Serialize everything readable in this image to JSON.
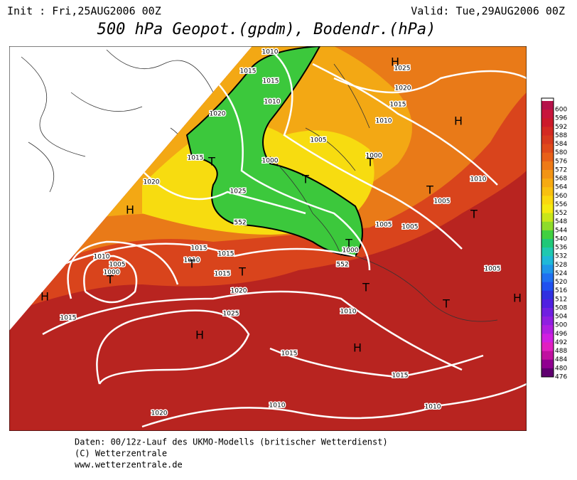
{
  "header": {
    "init": "Init : Fri,25AUG2006 00Z",
    "valid": "Valid: Tue,29AUG2006 00Z",
    "title": "500 hPa Geopot.(gpdm), Bodendr.(hPa)"
  },
  "legend": {
    "labels": [
      "600",
      "596",
      "592",
      "588",
      "584",
      "580",
      "576",
      "572",
      "568",
      "564",
      "560",
      "556",
      "552",
      "548",
      "544",
      "540",
      "536",
      "532",
      "528",
      "524",
      "520",
      "516",
      "512",
      "508",
      "504",
      "500",
      "496",
      "492",
      "488",
      "484",
      "480",
      "476"
    ]
  },
  "map": {
    "labels": [
      "1010",
      "1015",
      "1015",
      "1010",
      "1020",
      "1015",
      "T",
      "1020",
      "H",
      "1025",
      "H",
      "1020",
      "1015",
      "1010",
      "H",
      "1005",
      "1000",
      "1000",
      "T",
      "T",
      "1025",
      "T",
      "1010",
      "1005",
      "T",
      "1005",
      "1005",
      "1015",
      "1015",
      "1010",
      "T",
      "1015",
      "T",
      "1010",
      "1005",
      "1000",
      "T",
      "H",
      "1020",
      "T",
      "1005",
      "T",
      "H",
      "1025",
      "H",
      "1010",
      "1015",
      "H",
      "1015",
      "1015",
      "1020",
      "1010",
      "1010",
      "1000",
      "T",
      "552",
      "552"
    ]
  },
  "footer": {
    "lines": [
      "Daten: 00/12z-Lauf des UKMO-Modells (britischer Wetterdienst)",
      "(C) Wetterzentrale",
      "www.wetterzentrale.de"
    ]
  }
}
